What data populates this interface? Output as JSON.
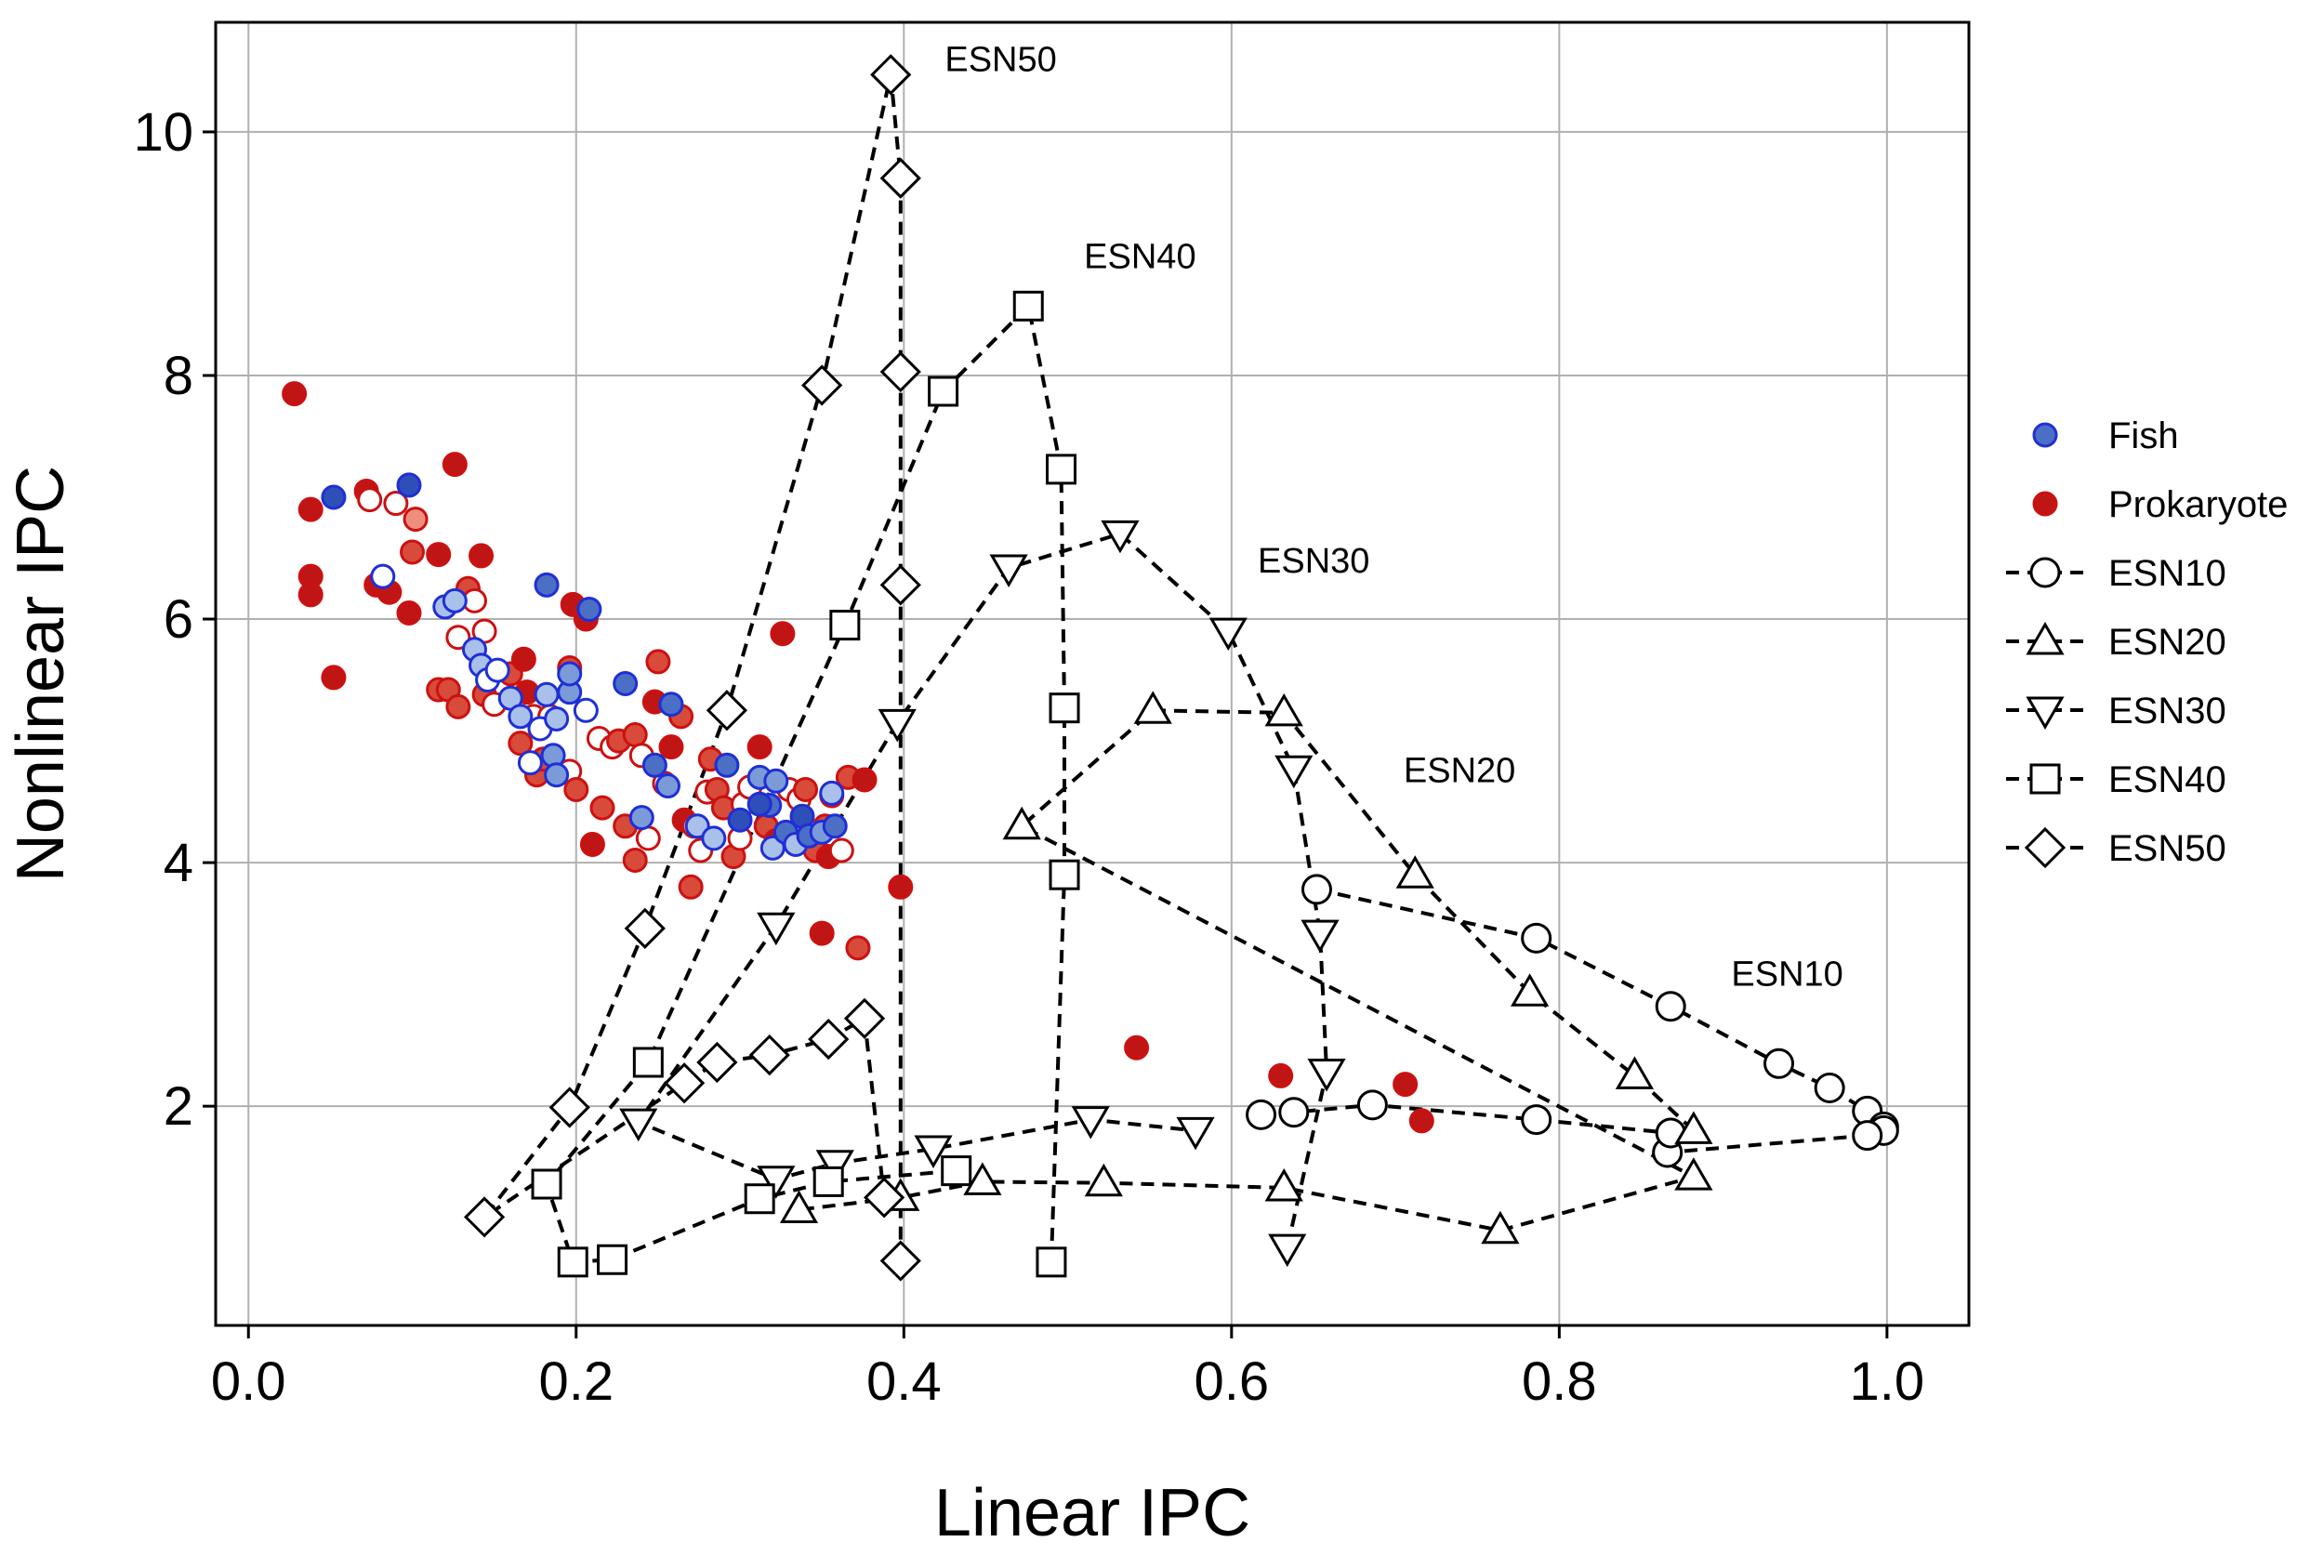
{
  "chart_data": {
    "type": "scatter",
    "xlabel": "Linear IPC",
    "ylabel": "Nonlinear IPC",
    "xlim": [
      -0.02,
      1.05
    ],
    "ylim": [
      0.2,
      10.9
    ],
    "xticks": [
      "0.0",
      "0.2",
      "0.4",
      "0.6",
      "0.8",
      "1.0"
    ],
    "yticks": [
      "2",
      "4",
      "6",
      "8",
      "10"
    ],
    "grid": true,
    "legend_position": "right, outside plot",
    "colors": {
      "fish_edge": "#1f2fd6",
      "fish_fills": [
        "#2f4fb8",
        "#4a6fc4",
        "#7a9ad8",
        "#a9c0ea",
        "#ffffff"
      ],
      "prok_edge": "#cc1111",
      "prok_fills": [
        "#c01515",
        "#d84a3a",
        "#ee8f7e",
        "#ffffff"
      ],
      "esn_line": "#000000",
      "grid": "#b0b0b0"
    },
    "legend": [
      {
        "label": "Fish",
        "marker": "circle-filled-blue"
      },
      {
        "label": "Prokaryote",
        "marker": "circle-filled-red"
      },
      {
        "label": "ESN10",
        "marker": "circle-open"
      },
      {
        "label": "ESN20",
        "marker": "triangle-up-open"
      },
      {
        "label": "ESN30",
        "marker": "triangle-down-open"
      },
      {
        "label": "ESN40",
        "marker": "square-open"
      },
      {
        "label": "ESN50",
        "marker": "diamond-open"
      }
    ],
    "esn_series": [
      {
        "name": "ESN10",
        "marker": "circle",
        "label": "ESN10",
        "points": [
          [
            0.652,
            3.78
          ],
          [
            0.786,
            3.38
          ],
          [
            0.868,
            2.82
          ],
          [
            0.934,
            2.35
          ],
          [
            0.965,
            2.15
          ],
          [
            0.988,
            1.96
          ],
          [
            0.998,
            1.83
          ],
          [
            0.998,
            1.8
          ],
          [
            0.988,
            1.76
          ],
          [
            0.866,
            1.62
          ],
          [
            0.868,
            1.78
          ],
          [
            0.786,
            1.89
          ],
          [
            0.686,
            2.01
          ],
          [
            0.638,
            1.95
          ],
          [
            0.618,
            1.93
          ]
        ]
      },
      {
        "name": "ESN20",
        "marker": "triangle-up",
        "label": "ESN20",
        "points": [
          [
            0.882,
            1.8
          ],
          [
            0.846,
            2.25
          ],
          [
            0.782,
            2.93
          ],
          [
            0.712,
            3.9
          ],
          [
            0.632,
            5.23
          ],
          [
            0.552,
            5.25
          ],
          [
            0.472,
            4.3
          ],
          [
            0.882,
            1.42
          ],
          [
            0.764,
            0.98
          ],
          [
            0.632,
            1.33
          ],
          [
            0.522,
            1.37
          ],
          [
            0.448,
            1.38
          ],
          [
            0.398,
            1.25
          ],
          [
            0.336,
            1.15
          ]
        ]
      },
      {
        "name": "ESN30",
        "marker": "triangle-down",
        "label": "ESN30",
        "points": [
          [
            0.634,
            0.84
          ],
          [
            0.658,
            2.28
          ],
          [
            0.654,
            3.42
          ],
          [
            0.638,
            4.77
          ],
          [
            0.598,
            5.9
          ],
          [
            0.532,
            6.7
          ],
          [
            0.464,
            6.42
          ],
          [
            0.396,
            5.15
          ],
          [
            0.322,
            3.48
          ],
          [
            0.238,
            1.87
          ],
          [
            0.322,
            1.4
          ],
          [
            0.358,
            1.53
          ],
          [
            0.418,
            1.65
          ],
          [
            0.514,
            1.89
          ],
          [
            0.578,
            1.8
          ]
        ]
      },
      {
        "name": "ESN40",
        "marker": "square",
        "label": "ESN40",
        "points": [
          [
            0.49,
            0.72
          ],
          [
            0.498,
            3.9
          ],
          [
            0.498,
            5.27
          ],
          [
            0.496,
            7.23
          ],
          [
            0.476,
            8.57
          ],
          [
            0.424,
            7.87
          ],
          [
            0.364,
            5.95
          ],
          [
            0.244,
            2.36
          ],
          [
            0.182,
            1.36
          ],
          [
            0.198,
            0.72
          ],
          [
            0.222,
            0.74
          ],
          [
            0.312,
            1.24
          ],
          [
            0.354,
            1.38
          ],
          [
            0.432,
            1.47
          ]
        ]
      },
      {
        "name": "ESN50",
        "marker": "diamond",
        "label": "ESN50",
        "points": [
          [
            0.398,
            0.73
          ],
          [
            0.398,
            6.28
          ],
          [
            0.398,
            8.03
          ],
          [
            0.398,
            9.62
          ],
          [
            0.392,
            10.47
          ],
          [
            0.35,
            7.92
          ],
          [
            0.292,
            5.25
          ],
          [
            0.242,
            3.46
          ],
          [
            0.196,
            1.99
          ],
          [
            0.144,
            1.09
          ],
          [
            0.266,
            2.19
          ],
          [
            0.286,
            2.36
          ],
          [
            0.318,
            2.42
          ],
          [
            0.354,
            2.55
          ],
          [
            0.376,
            2.72
          ],
          [
            0.388,
            1.25
          ]
        ]
      }
    ],
    "fish_points": [
      [
        0.052,
        7.0,
        0
      ],
      [
        0.098,
        7.1,
        0
      ],
      [
        0.082,
        6.35,
        4
      ],
      [
        0.12,
        6.1,
        3
      ],
      [
        0.126,
        6.15,
        3
      ],
      [
        0.182,
        6.28,
        1
      ],
      [
        0.208,
        6.08,
        1
      ],
      [
        0.138,
        5.75,
        3
      ],
      [
        0.142,
        5.62,
        3
      ],
      [
        0.146,
        5.5,
        4
      ],
      [
        0.152,
        5.58,
        4
      ],
      [
        0.16,
        5.35,
        3
      ],
      [
        0.166,
        5.2,
        3
      ],
      [
        0.172,
        4.82,
        4
      ],
      [
        0.178,
        5.1,
        4
      ],
      [
        0.182,
        5.38,
        3
      ],
      [
        0.188,
        5.18,
        3
      ],
      [
        0.196,
        5.4,
        2
      ],
      [
        0.196,
        5.55,
        2
      ],
      [
        0.206,
        5.25,
        4
      ],
      [
        0.186,
        4.88,
        2
      ],
      [
        0.188,
        4.72,
        2
      ],
      [
        0.23,
        5.47,
        1
      ],
      [
        0.258,
        5.3,
        1
      ],
      [
        0.248,
        4.8,
        1
      ],
      [
        0.256,
        4.63,
        2
      ],
      [
        0.24,
        4.37,
        2
      ],
      [
        0.274,
        4.3,
        3
      ],
      [
        0.284,
        4.2,
        3
      ],
      [
        0.292,
        4.8,
        1
      ],
      [
        0.3,
        4.35,
        0
      ],
      [
        0.312,
        4.7,
        2
      ],
      [
        0.322,
        4.67,
        2
      ],
      [
        0.318,
        4.47,
        1
      ],
      [
        0.32,
        4.12,
        3
      ],
      [
        0.328,
        4.25,
        1
      ],
      [
        0.334,
        4.15,
        3
      ],
      [
        0.338,
        4.38,
        0
      ],
      [
        0.342,
        4.22,
        1
      ],
      [
        0.35,
        4.25,
        2
      ],
      [
        0.358,
        4.3,
        1
      ],
      [
        0.356,
        4.57,
        3
      ],
      [
        0.312,
        4.48,
        0
      ]
    ],
    "prok_points": [
      [
        0.028,
        7.85,
        0
      ],
      [
        0.038,
        6.9,
        0
      ],
      [
        0.038,
        6.35,
        0
      ],
      [
        0.038,
        6.2,
        0
      ],
      [
        0.052,
        5.52,
        0
      ],
      [
        0.072,
        7.05,
        0
      ],
      [
        0.074,
        6.98,
        3
      ],
      [
        0.078,
        6.28,
        0
      ],
      [
        0.09,
        6.95,
        3
      ],
      [
        0.086,
        6.22,
        0
      ],
      [
        0.098,
        6.05,
        0
      ],
      [
        0.102,
        6.82,
        2
      ],
      [
        0.1,
        6.55,
        1
      ],
      [
        0.116,
        6.53,
        0
      ],
      [
        0.126,
        7.27,
        0
      ],
      [
        0.128,
        5.85,
        3
      ],
      [
        0.134,
        6.25,
        1
      ],
      [
        0.138,
        6.15,
        3
      ],
      [
        0.116,
        5.42,
        1
      ],
      [
        0.122,
        5.42,
        1
      ],
      [
        0.128,
        5.28,
        1
      ],
      [
        0.142,
        6.52,
        0
      ],
      [
        0.144,
        5.38,
        1
      ],
      [
        0.144,
        5.9,
        3
      ],
      [
        0.15,
        5.3,
        3
      ],
      [
        0.16,
        5.55,
        1
      ],
      [
        0.166,
        4.98,
        1
      ],
      [
        0.168,
        5.67,
        0
      ],
      [
        0.17,
        5.4,
        0
      ],
      [
        0.174,
        5.2,
        3
      ],
      [
        0.176,
        4.72,
        1
      ],
      [
        0.18,
        4.85,
        1
      ],
      [
        0.184,
        5.2,
        3
      ],
      [
        0.196,
        5.6,
        1
      ],
      [
        0.198,
        6.12,
        0
      ],
      [
        0.196,
        4.75,
        3
      ],
      [
        0.2,
        4.6,
        1
      ],
      [
        0.206,
        6.0,
        0
      ],
      [
        0.21,
        4.15,
        0
      ],
      [
        0.214,
        5.02,
        3
      ],
      [
        0.216,
        4.45,
        1
      ],
      [
        0.222,
        4.95,
        3
      ],
      [
        0.226,
        5.0,
        1
      ],
      [
        0.23,
        4.3,
        1
      ],
      [
        0.236,
        5.05,
        1
      ],
      [
        0.24,
        4.88,
        3
      ],
      [
        0.236,
        4.02,
        1
      ],
      [
        0.244,
        4.2,
        3
      ],
      [
        0.248,
        5.32,
        0
      ],
      [
        0.25,
        5.65,
        1
      ],
      [
        0.254,
        4.65,
        3
      ],
      [
        0.258,
        4.95,
        0
      ],
      [
        0.264,
        5.2,
        1
      ],
      [
        0.266,
        4.35,
        0
      ],
      [
        0.27,
        3.8,
        1
      ],
      [
        0.272,
        4.3,
        3
      ],
      [
        0.276,
        4.1,
        3
      ],
      [
        0.28,
        4.58,
        3
      ],
      [
        0.282,
        4.85,
        1
      ],
      [
        0.286,
        4.6,
        1
      ],
      [
        0.29,
        4.45,
        1
      ],
      [
        0.296,
        4.05,
        1
      ],
      [
        0.3,
        4.2,
        3
      ],
      [
        0.302,
        4.48,
        3
      ],
      [
        0.306,
        4.62,
        3
      ],
      [
        0.312,
        4.95,
        0
      ],
      [
        0.316,
        4.3,
        1
      ],
      [
        0.322,
        4.18,
        0
      ],
      [
        0.326,
        5.88,
        0
      ],
      [
        0.33,
        4.6,
        3
      ],
      [
        0.336,
        4.52,
        3
      ],
      [
        0.34,
        4.6,
        1
      ],
      [
        0.346,
        4.1,
        1
      ],
      [
        0.352,
        4.3,
        1
      ],
      [
        0.354,
        4.05,
        0
      ],
      [
        0.35,
        3.42,
        0
      ],
      [
        0.356,
        4.55,
        1
      ],
      [
        0.362,
        4.1,
        3
      ],
      [
        0.366,
        4.7,
        1
      ],
      [
        0.372,
        3.3,
        1
      ],
      [
        0.376,
        4.68,
        0
      ],
      [
        0.398,
        3.8,
        0
      ],
      [
        0.542,
        2.48,
        0
      ],
      [
        0.63,
        2.25,
        0
      ],
      [
        0.706,
        2.18,
        0
      ],
      [
        0.716,
        1.88,
        0
      ]
    ],
    "annotations": [
      {
        "text": "ESN50",
        "x": 0.425,
        "y": 10.5
      },
      {
        "text": "ESN40",
        "x": 0.51,
        "y": 8.88
      },
      {
        "text": "ESN30",
        "x": 0.616,
        "y": 6.38
      },
      {
        "text": "ESN20",
        "x": 0.705,
        "y": 4.66
      },
      {
        "text": "ESN10",
        "x": 0.905,
        "y": 2.99
      }
    ]
  }
}
